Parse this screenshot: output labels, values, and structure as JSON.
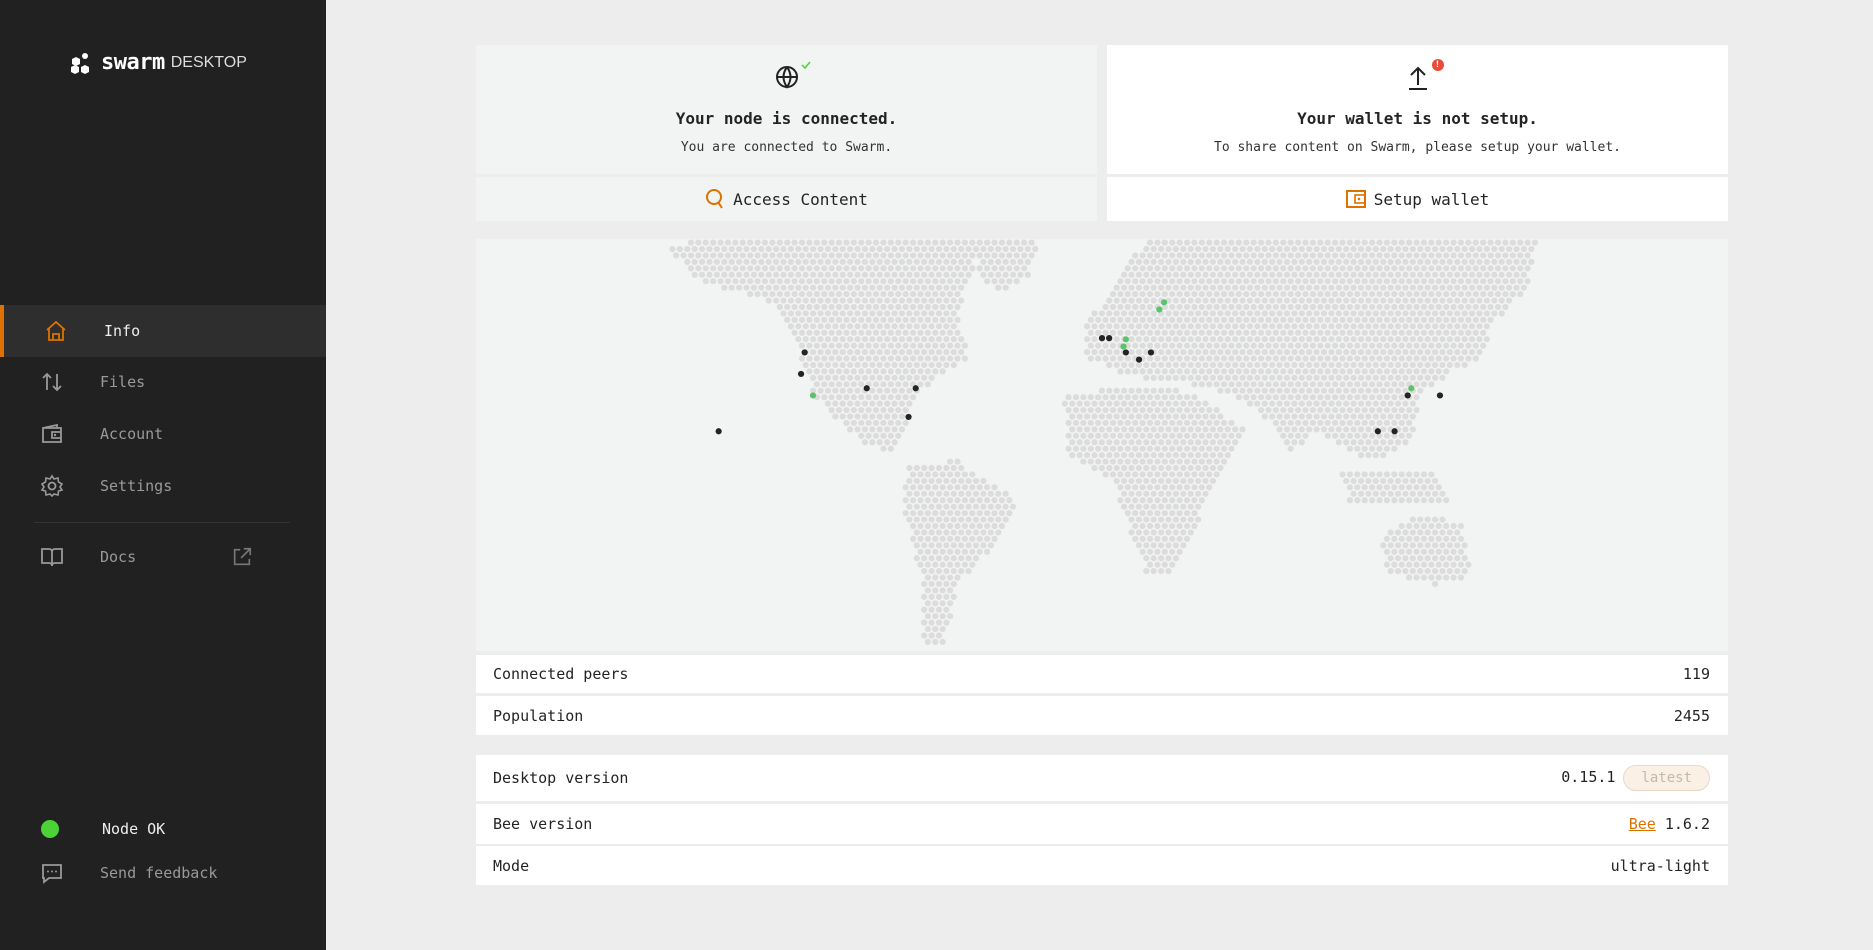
{
  "app": {
    "logo_word": "swarm",
    "logo_suffix": "DESKTOP"
  },
  "sidebar": {
    "items": [
      {
        "label": "Info",
        "icon": "home-icon",
        "active": true
      },
      {
        "label": "Files",
        "icon": "arrows-up-down-icon"
      },
      {
        "label": "Account",
        "icon": "wallet-icon"
      },
      {
        "label": "Settings",
        "icon": "gear-icon"
      },
      {
        "label": "Docs",
        "icon": "book-icon",
        "external": true
      }
    ],
    "status": {
      "label": "Node OK",
      "color": "#4cd137"
    },
    "feedback": {
      "label": "Send feedback",
      "icon": "chat-icon"
    }
  },
  "cards": {
    "node": {
      "title": "Your node is connected.",
      "subtitle": "You are connected to Swarm.",
      "icon": "globe-icon",
      "badge": "check-icon",
      "button": "Access Content",
      "button_icon": "search-icon"
    },
    "wallet": {
      "title": "Your wallet is not setup.",
      "subtitle": "To share content on Swarm, please setup your wallet.",
      "icon": "upload-icon",
      "badge": "alert-icon",
      "button": "Setup wallet",
      "button_icon": "wallet-icon"
    }
  },
  "stats": [
    {
      "label": "Connected peers",
      "value": "119"
    },
    {
      "label": "Population",
      "value": "2455"
    }
  ],
  "versions": {
    "desktop": {
      "label": "Desktop version",
      "value": "0.15.1",
      "badge": "latest"
    },
    "bee": {
      "label": "Bee version",
      "link": "Bee",
      "value": "1.6.2"
    },
    "mode": {
      "label": "Mode",
      "value": "ultra-light"
    }
  },
  "colors": {
    "accent": "#dd7200",
    "ok": "#4cd137",
    "alert": "#e74c3c",
    "peer": "#242424",
    "peer_green": "#5bc46b"
  }
}
